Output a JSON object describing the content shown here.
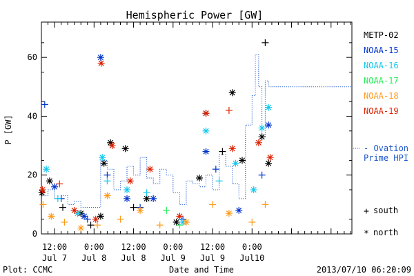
{
  "chart_data": {
    "type": "scatter",
    "title": "Hemispheric Power [GW]",
    "ylabel": "P [GW]",
    "xlabel": "Date and Time",
    "ylim": [
      0,
      72
    ],
    "yticks": [
      0,
      20,
      40,
      60
    ],
    "xlim": [
      "2013-07-06T08:00",
      "2013-07-10T06:20"
    ],
    "xticks": [
      {
        "at": "2013-07-06T12:00",
        "time": "12:00",
        "date": "Jul 7"
      },
      {
        "at": "2013-07-07T00:00",
        "time": "0:00",
        "date": "Jul 8"
      },
      {
        "at": "2013-07-07T12:00",
        "time": "12:00",
        "date": "Jul 8"
      },
      {
        "at": "2013-07-08T00:00",
        "time": "0:00",
        "date": "Jul 9"
      },
      {
        "at": "2013-07-08T12:00",
        "time": "12:00",
        "date": "Jul 9"
      },
      {
        "at": "2013-07-09T00:00",
        "time": "0:00",
        "date": "Jul10"
      }
    ],
    "footer_left": "Plot: CCMC",
    "footer_right": "2013/07/10 06:20:09",
    "markers_legend": {
      "south": "south",
      "north": "north"
    },
    "series": [
      {
        "name": "METP-02",
        "color": "#000000",
        "points": [
          {
            "t": "2013-07-06T08:10",
            "p": 14,
            "h": "n"
          },
          {
            "t": "2013-07-06T10:30",
            "p": 18,
            "h": "n"
          },
          {
            "t": "2013-07-06T14:30",
            "p": 9,
            "h": "s"
          },
          {
            "t": "2013-07-06T20:00",
            "p": 7,
            "h": "n"
          },
          {
            "t": "2013-07-06T23:00",
            "p": 3,
            "h": "s"
          },
          {
            "t": "2013-07-07T02:00",
            "p": 6,
            "h": "n"
          },
          {
            "t": "2013-07-07T03:00",
            "p": 24,
            "h": "n"
          },
          {
            "t": "2013-07-07T05:00",
            "p": 31,
            "h": "n"
          },
          {
            "t": "2013-07-07T09:30",
            "p": 29,
            "h": "n"
          },
          {
            "t": "2013-07-07T12:00",
            "p": 9,
            "h": "s"
          },
          {
            "t": "2013-07-07T16:00",
            "p": 12,
            "h": "n"
          },
          {
            "t": "2013-07-08T01:00",
            "p": 4,
            "h": "n"
          },
          {
            "t": "2013-07-08T08:00",
            "p": 19,
            "h": "n"
          },
          {
            "t": "2013-07-08T10:00",
            "p": 41,
            "h": "n"
          },
          {
            "t": "2013-07-08T15:00",
            "p": 28,
            "h": "s"
          },
          {
            "t": "2013-07-08T18:00",
            "p": 48,
            "h": "n"
          },
          {
            "t": "2013-07-08T21:00",
            "p": 25,
            "h": "n"
          },
          {
            "t": "2013-07-09T03:00",
            "p": 33,
            "h": "n"
          },
          {
            "t": "2013-07-09T04:00",
            "p": 65,
            "h": "s"
          },
          {
            "t": "2013-07-09T05:00",
            "p": 24,
            "h": "n"
          }
        ]
      },
      {
        "name": "NOAA-15",
        "color": "#0033cc",
        "points": [
          {
            "t": "2013-07-06T09:00",
            "p": 44,
            "h": "s"
          },
          {
            "t": "2013-07-06T12:00",
            "p": 16,
            "h": "n"
          },
          {
            "t": "2013-07-06T14:00",
            "p": 12,
            "h": "s"
          },
          {
            "t": "2013-07-06T21:00",
            "p": 6,
            "h": "n"
          },
          {
            "t": "2013-07-06T22:00",
            "p": 5,
            "h": "s"
          },
          {
            "t": "2013-07-07T02:00",
            "p": 60,
            "h": "n"
          },
          {
            "t": "2013-07-07T04:00",
            "p": 20,
            "h": "s"
          },
          {
            "t": "2013-07-07T10:00",
            "p": 12,
            "h": "n"
          },
          {
            "t": "2013-07-07T14:00",
            "p": 9,
            "h": "s"
          },
          {
            "t": "2013-07-07T18:00",
            "p": 12,
            "h": "n"
          },
          {
            "t": "2013-07-08T03:00",
            "p": 5,
            "h": "s"
          },
          {
            "t": "2013-07-08T10:00",
            "p": 28,
            "h": "n"
          },
          {
            "t": "2013-07-08T13:00",
            "p": 22,
            "h": "s"
          },
          {
            "t": "2013-07-08T20:00",
            "p": 8,
            "h": "n"
          },
          {
            "t": "2013-07-09T03:00",
            "p": 20,
            "h": "s"
          },
          {
            "t": "2013-07-09T05:00",
            "p": 37,
            "h": "n"
          }
        ]
      },
      {
        "name": "NOAA-16",
        "color": "#11c7ee",
        "points": [
          {
            "t": "2013-07-06T09:30",
            "p": 22,
            "h": "n"
          },
          {
            "t": "2013-07-06T13:00",
            "p": 12,
            "h": "s"
          },
          {
            "t": "2013-07-06T19:00",
            "p": 7,
            "h": "n"
          },
          {
            "t": "2013-07-07T02:30",
            "p": 26,
            "h": "n"
          },
          {
            "t": "2013-07-07T04:00",
            "p": 18,
            "h": "s"
          },
          {
            "t": "2013-07-07T10:00",
            "p": 15,
            "h": "n"
          },
          {
            "t": "2013-07-07T16:00",
            "p": 14,
            "h": "s"
          },
          {
            "t": "2013-07-08T03:00",
            "p": 4,
            "h": "n"
          },
          {
            "t": "2013-07-08T10:00",
            "p": 35,
            "h": "n"
          },
          {
            "t": "2013-07-08T14:00",
            "p": 18,
            "h": "s"
          },
          {
            "t": "2013-07-08T19:00",
            "p": 24,
            "h": "n"
          },
          {
            "t": "2013-07-09T00:30",
            "p": 15,
            "h": "n"
          },
          {
            "t": "2013-07-09T03:00",
            "p": 36,
            "h": "n"
          },
          {
            "t": "2013-07-09T05:00",
            "p": 43,
            "h": "n"
          }
        ]
      },
      {
        "name": "NOAA-17",
        "color": "#22ee55",
        "points": [
          {
            "t": "2013-07-07T22:00",
            "p": 8,
            "h": "s"
          },
          {
            "t": "2013-07-08T02:00",
            "p": 3,
            "h": "s"
          }
        ]
      },
      {
        "name": "NOAA-18",
        "color": "#ff9a1a",
        "points": [
          {
            "t": "2013-07-06T08:30",
            "p": 10,
            "h": "s"
          },
          {
            "t": "2013-07-06T11:00",
            "p": 6,
            "h": "n"
          },
          {
            "t": "2013-07-06T15:00",
            "p": 4,
            "h": "s"
          },
          {
            "t": "2013-07-06T20:00",
            "p": 2,
            "h": "n"
          },
          {
            "t": "2013-07-07T01:00",
            "p": 3,
            "h": "s"
          },
          {
            "t": "2013-07-07T04:00",
            "p": 13,
            "h": "n"
          },
          {
            "t": "2013-07-07T08:00",
            "p": 5,
            "h": "s"
          },
          {
            "t": "2013-07-07T14:00",
            "p": 8,
            "h": "n"
          },
          {
            "t": "2013-07-07T20:00",
            "p": 3,
            "h": "s"
          },
          {
            "t": "2013-07-08T04:00",
            "p": 4,
            "h": "n"
          },
          {
            "t": "2013-07-08T12:00",
            "p": 10,
            "h": "s"
          },
          {
            "t": "2013-07-08T17:00",
            "p": 7,
            "h": "n"
          },
          {
            "t": "2013-07-09T00:00",
            "p": 4,
            "h": "s"
          },
          {
            "t": "2013-07-09T04:00",
            "p": 10,
            "h": "s"
          }
        ]
      },
      {
        "name": "NOAA-19",
        "color": "#dd2200",
        "points": [
          {
            "t": "2013-07-06T08:20",
            "p": 15,
            "h": "n"
          },
          {
            "t": "2013-07-06T13:30",
            "p": 17,
            "h": "s"
          },
          {
            "t": "2013-07-06T18:00",
            "p": 8,
            "h": "n"
          },
          {
            "t": "2013-07-07T00:30",
            "p": 5,
            "h": "n"
          },
          {
            "t": "2013-07-07T02:10",
            "p": 58,
            "h": "n"
          },
          {
            "t": "2013-07-07T05:30",
            "p": 30,
            "h": "n"
          },
          {
            "t": "2013-07-07T11:00",
            "p": 18,
            "h": "n"
          },
          {
            "t": "2013-07-07T17:00",
            "p": 22,
            "h": "n"
          },
          {
            "t": "2013-07-08T02:00",
            "p": 6,
            "h": "n"
          },
          {
            "t": "2013-07-08T10:00",
            "p": 41,
            "h": "n"
          },
          {
            "t": "2013-07-08T17:00",
            "p": 42,
            "h": "s"
          },
          {
            "t": "2013-07-08T18:00",
            "p": 29,
            "h": "n"
          },
          {
            "t": "2013-07-09T02:00",
            "p": 31,
            "h": "n"
          },
          {
            "t": "2013-07-09T05:30",
            "p": 26,
            "h": "n"
          }
        ]
      }
    ],
    "ovation": {
      "name": "Ovation Prime HPI",
      "label_lines": [
        "- Ovation",
        "Prime HPI"
      ],
      "color": "#1a55cc",
      "points": [
        {
          "t": "2013-07-06T08:00",
          "p": 13
        },
        {
          "t": "2013-07-06T10:00",
          "p": 15
        },
        {
          "t": "2013-07-06T12:00",
          "p": 12
        },
        {
          "t": "2013-07-06T14:00",
          "p": 13
        },
        {
          "t": "2013-07-06T16:00",
          "p": 10
        },
        {
          "t": "2013-07-06T18:00",
          "p": 11
        },
        {
          "t": "2013-07-06T20:00",
          "p": 9
        },
        {
          "t": "2013-07-06T22:00",
          "p": 9
        },
        {
          "t": "2013-07-07T00:00",
          "p": 9
        },
        {
          "t": "2013-07-07T02:00",
          "p": 25
        },
        {
          "t": "2013-07-07T04:00",
          "p": 22
        },
        {
          "t": "2013-07-07T06:00",
          "p": 15
        },
        {
          "t": "2013-07-07T08:00",
          "p": 18
        },
        {
          "t": "2013-07-07T10:00",
          "p": 23
        },
        {
          "t": "2013-07-07T12:00",
          "p": 20
        },
        {
          "t": "2013-07-07T14:00",
          "p": 26
        },
        {
          "t": "2013-07-07T16:00",
          "p": 19
        },
        {
          "t": "2013-07-07T18:00",
          "p": 17
        },
        {
          "t": "2013-07-07T20:00",
          "p": 22
        },
        {
          "t": "2013-07-07T22:00",
          "p": 20
        },
        {
          "t": "2013-07-08T00:00",
          "p": 14
        },
        {
          "t": "2013-07-08T02:00",
          "p": 10
        },
        {
          "t": "2013-07-08T04:00",
          "p": 18
        },
        {
          "t": "2013-07-08T06:00",
          "p": 17
        },
        {
          "t": "2013-07-08T08:00",
          "p": 16
        },
        {
          "t": "2013-07-08T10:00",
          "p": 20
        },
        {
          "t": "2013-07-08T12:00",
          "p": 15
        },
        {
          "t": "2013-07-08T14:00",
          "p": 27
        },
        {
          "t": "2013-07-08T16:00",
          "p": 23
        },
        {
          "t": "2013-07-08T18:00",
          "p": 17
        },
        {
          "t": "2013-07-08T20:00",
          "p": 12
        },
        {
          "t": "2013-07-08T22:00",
          "p": 37
        },
        {
          "t": "2013-07-09T00:00",
          "p": 47
        },
        {
          "t": "2013-07-09T01:00",
          "p": 61
        },
        {
          "t": "2013-07-09T02:00",
          "p": 50
        },
        {
          "t": "2013-07-09T03:00",
          "p": 33
        },
        {
          "t": "2013-07-09T04:00",
          "p": 52
        },
        {
          "t": "2013-07-09T05:00",
          "p": 50
        }
      ]
    }
  }
}
